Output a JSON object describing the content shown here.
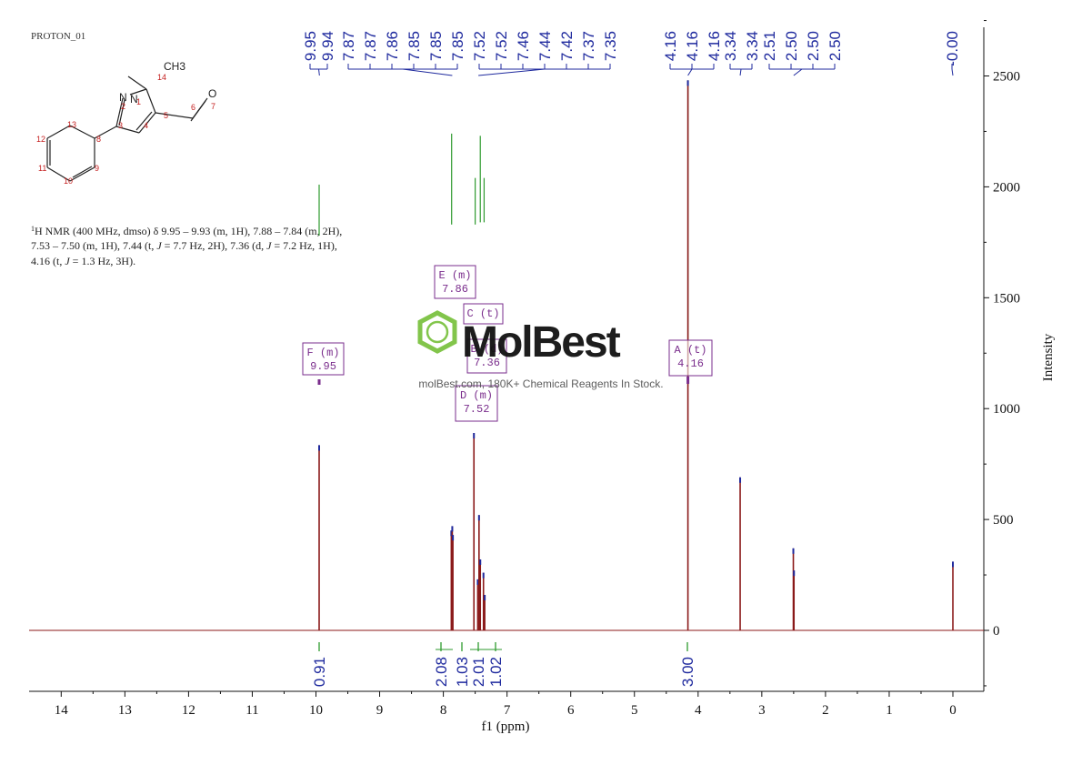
{
  "header": {
    "experiment": "PROTON_01"
  },
  "molecule": {
    "atoms": [
      {
        "symbol": "N",
        "number": "1"
      },
      {
        "symbol": "N",
        "number": "2"
      },
      {
        "symbol": "",
        "number": "3"
      },
      {
        "symbol": "",
        "number": "4"
      },
      {
        "symbol": "",
        "number": "5"
      },
      {
        "symbol": "",
        "number": "6"
      },
      {
        "symbol": "O",
        "number": "7"
      },
      {
        "symbol": "",
        "number": "8"
      },
      {
        "symbol": "",
        "number": "9"
      },
      {
        "symbol": "",
        "number": "10"
      },
      {
        "symbol": "",
        "number": "11"
      },
      {
        "symbol": "",
        "number": "12"
      },
      {
        "symbol": "",
        "number": "13"
      },
      {
        "symbol": "CH3",
        "number": "14"
      }
    ]
  },
  "nmr_text": {
    "sup": "1",
    "line1_rest": "H NMR (400 MHz, dmso) δ 9.95 – 9.93 (m, 1H), 7.88 – 7.84 (m, 2H),",
    "line2a": "7.53 – 7.50 (m, 1H), 7.44 (t, ",
    "line2b": " = 7.7 Hz, 2H), 7.36 (d, ",
    "line2c": " = 7.2 Hz, 1H),",
    "line3a": "4.16 (t, ",
    "line3b": " = 1.3 Hz, 3H).",
    "j": "J"
  },
  "watermark": {
    "brand": "MolBest",
    "tagline": "molBest.com, 180K+ Chemical Reagents In Stock."
  },
  "chart_data": {
    "type": "line",
    "title": "",
    "xlabel": "f1 (ppm)",
    "ylabel": "Intensity",
    "xlim": [
      14.5,
      -0.5
    ],
    "ylim": [
      -250,
      2750
    ],
    "x_ticks": [
      "14",
      "13",
      "12",
      "11",
      "10",
      "9",
      "8",
      "7",
      "6",
      "5",
      "4",
      "3",
      "2",
      "1",
      "0"
    ],
    "y_ticks": [
      "0",
      "500",
      "1000",
      "1500",
      "2000",
      "2500"
    ],
    "peaks": [
      {
        "x": 9.95,
        "y": 835
      },
      {
        "x": 7.875,
        "y": 450
      },
      {
        "x": 7.86,
        "y": 470
      },
      {
        "x": 7.85,
        "y": 430
      },
      {
        "x": 7.52,
        "y": 890
      },
      {
        "x": 7.46,
        "y": 230
      },
      {
        "x": 7.44,
        "y": 520
      },
      {
        "x": 7.42,
        "y": 320
      },
      {
        "x": 7.37,
        "y": 260
      },
      {
        "x": 7.35,
        "y": 160
      },
      {
        "x": 4.16,
        "y": 2480
      },
      {
        "x": 3.34,
        "y": 690
      },
      {
        "x": 2.505,
        "y": 370
      },
      {
        "x": 2.495,
        "y": 270
      },
      {
        "x": 0.0,
        "y": 310
      }
    ],
    "peak_labels": [
      "9.95",
      "9.94",
      "7.87",
      "7.87",
      "7.86",
      "7.85",
      "7.85",
      "7.85",
      "7.52",
      "7.52",
      "7.46",
      "7.44",
      "7.42",
      "7.37",
      "7.35",
      "4.16",
      "4.16",
      "4.16",
      "3.34",
      "3.34",
      "2.51",
      "2.50",
      "2.50",
      "2.50",
      "-0.00"
    ],
    "multiplets": [
      {
        "letter": "F",
        "mult": "m",
        "shift": "9.95"
      },
      {
        "letter": "E",
        "mult": "m",
        "shift": "7.86"
      },
      {
        "letter": "C",
        "mult": "t",
        "shift": ""
      },
      {
        "letter": "B",
        "mult": "d",
        "shift": "7.36"
      },
      {
        "letter": "D",
        "mult": "m",
        "shift": "7.52"
      },
      {
        "letter": "A",
        "mult": "t",
        "shift": "4.16"
      }
    ],
    "integrals": [
      {
        "x": 9.95,
        "value": "0.91"
      },
      {
        "x": 7.86,
        "value": "2.08"
      },
      {
        "x": 7.52,
        "value": "1.03"
      },
      {
        "x": 7.44,
        "value": "2.01"
      },
      {
        "x": 7.36,
        "value": "1.02"
      },
      {
        "x": 4.16,
        "value": "3.00"
      }
    ],
    "colors": {
      "spectrum": "#8b1a1a",
      "peak_labels": "#1f2a9e",
      "integrals": "#1f2a9e",
      "integral_curves": "#2e9a2e",
      "multiplet_boxes": "#7a2d8c",
      "watermark": "#7cc242"
    }
  }
}
